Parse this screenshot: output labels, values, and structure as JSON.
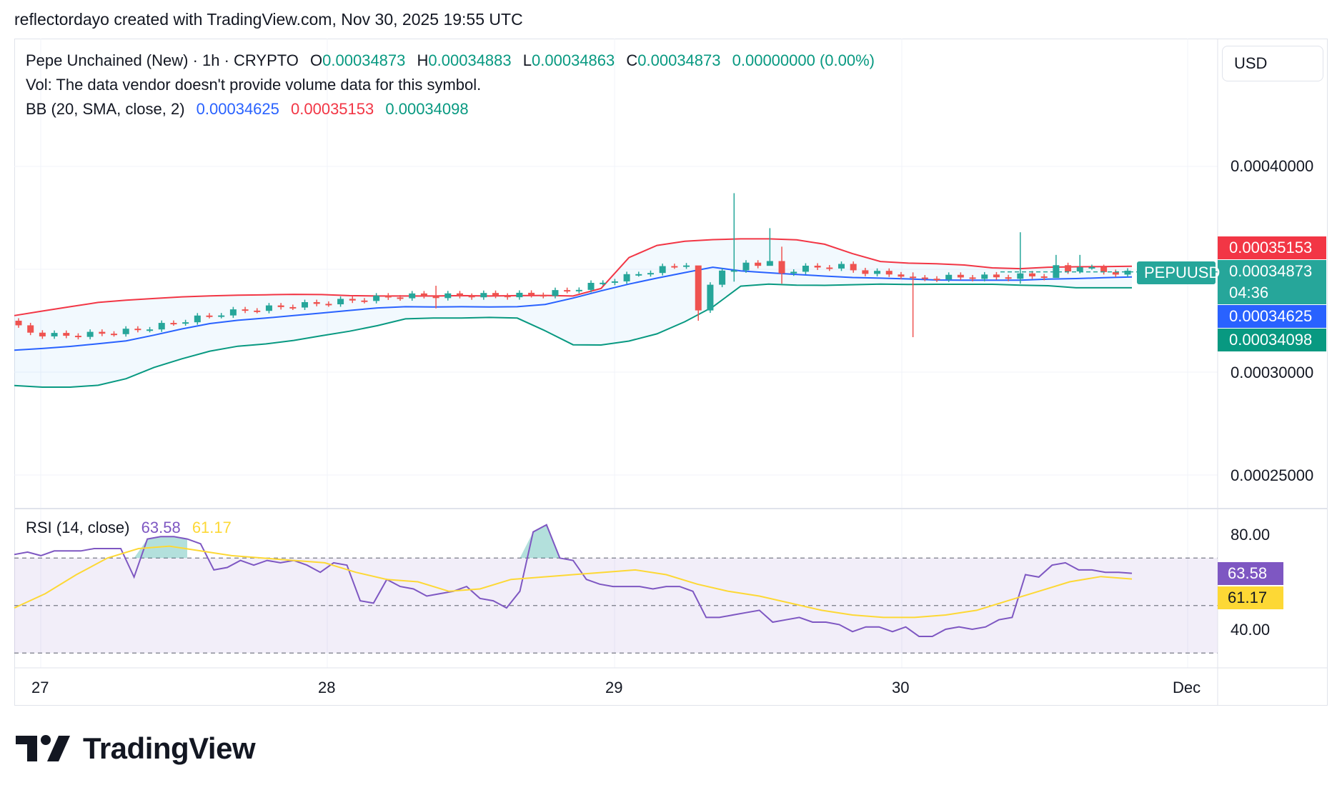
{
  "header": {
    "created_by": "reflectordayo created with TradingView.com, Nov 30, 2025 19:55 UTC"
  },
  "legend": {
    "symbol": "Pepe Unchained (New) · 1h · CRYPTO",
    "o_label": "O",
    "o": "0.00034873",
    "h_label": "H",
    "h": "0.00034883",
    "l_label": "L",
    "l": "0.00034863",
    "c_label": "C",
    "c": "0.00034873",
    "change": "0.00000000 (0.00%)",
    "vol": "Vol: The data vendor doesn't provide volume data for this symbol.",
    "bb_label": "BB (20, SMA, close, 2)",
    "bb_basis": "0.00034625",
    "bb_upper": "0.00035153",
    "bb_lower": "0.00034098"
  },
  "currency": "USD",
  "price_axis": {
    "ticks": [
      "0.00040000",
      "0.00030000",
      "0.00025000"
    ],
    "tags": {
      "upper": "0.00035153",
      "last": "0.00034873",
      "countdown": "04:36",
      "basis": "0.00034625",
      "lower": "0.00034098",
      "symbol": "PEPUUSD"
    }
  },
  "rsi": {
    "label": "RSI (14, close)",
    "value": "63.58",
    "ma": "61.17",
    "ticks": [
      "80.00",
      "40.00"
    ],
    "tag_value": "63.58",
    "tag_ma": "61.17"
  },
  "time_axis": {
    "ticks": [
      "27",
      "28",
      "29",
      "30",
      "Dec"
    ]
  },
  "colors": {
    "up": "#26a69a",
    "down": "#ef5350",
    "basis": "#2962ff",
    "upper": "#f23645",
    "lower": "#089981",
    "rsi": "#7e57c2",
    "rsi_ma": "#fdd835"
  },
  "brand": "TradingView",
  "chart_data": [
    {
      "type": "candlestick",
      "title": "Pepe Unchained (New) · 1h · CRYPTO",
      "x_ticks": [
        "27",
        "28",
        "29",
        "30",
        "Dec"
      ],
      "ylim": [
        0.00023,
        0.00042
      ],
      "series": [
        {
          "name": "BB (20, SMA, close, 2)",
          "upper_approx": [
            0.0003275,
            0.0003297,
            0.0003318,
            0.0003339,
            0.000335,
            0.0003358,
            0.0003366,
            0.0003371,
            0.0003374,
            0.0003376,
            0.0003378,
            0.0003377,
            0.0003372,
            0.000337,
            0.000337,
            0.000337,
            0.0003372,
            0.000337,
            0.0003372,
            0.0003373,
            0.000337,
            0.0003407,
            0.0003557,
            0.0003616,
            0.0003636,
            0.0003644,
            0.0003648,
            0.0003648,
            0.0003643,
            0.0003622,
            0.0003576,
            0.0003538,
            0.000353,
            0.0003527,
            0.0003521,
            0.0003507,
            0.0003503,
            0.000351,
            0.0003512,
            0.0003513,
            0.0003515
          ],
          "basis_approx": [
            0.0003107,
            0.0003115,
            0.0003125,
            0.0003138,
            0.0003152,
            0.000318,
            0.000321,
            0.0003236,
            0.0003252,
            0.0003263,
            0.0003275,
            0.0003287,
            0.00033,
            0.0003312,
            0.0003318,
            0.0003317,
            0.0003318,
            0.0003317,
            0.0003318,
            0.0003329,
            0.000336,
            0.0003395,
            0.0003428,
            0.0003457,
            0.0003484,
            0.000351,
            0.0003492,
            0.0003483,
            0.0003475,
            0.0003467,
            0.000346,
            0.0003457,
            0.0003453,
            0.0003448,
            0.0003447,
            0.0003447,
            0.0003447,
            0.0003452,
            0.0003455,
            0.0003459,
            0.0003463
          ],
          "lower_approx": [
            0.0002935,
            0.0002927,
            0.0002927,
            0.0002936,
            0.0002968,
            0.0003023,
            0.0003065,
            0.0003102,
            0.0003126,
            0.0003137,
            0.0003154,
            0.0003177,
            0.0003199,
            0.0003226,
            0.0003259,
            0.0003263,
            0.0003263,
            0.0003266,
            0.0003263,
            0.0003201,
            0.0003133,
            0.0003132,
            0.0003151,
            0.0003186,
            0.0003245,
            0.0003317,
            0.0003418,
            0.0003428,
            0.0003423,
            0.0003422,
            0.0003425,
            0.0003428,
            0.0003426,
            0.0003427,
            0.0003427,
            0.0003427,
            0.0003423,
            0.000342,
            0.000341,
            0.000341,
            0.000341
          ]
        }
      ],
      "last_price": 0.00034873
    },
    {
      "type": "line",
      "title": "RSI (14, close)",
      "ylim": [
        25,
        90
      ],
      "bands": [
        70,
        50,
        30
      ],
      "series": [
        {
          "name": "RSI",
          "values": [
            71.5,
            72.5,
            71,
            73,
            73,
            73,
            74,
            74,
            74,
            62,
            78,
            79,
            79,
            78,
            76,
            65,
            66,
            69,
            67,
            69,
            68,
            69,
            67,
            64,
            68,
            67,
            52,
            51,
            61,
            58,
            57,
            54,
            55,
            56,
            58,
            53,
            52,
            49,
            56,
            81,
            84,
            70,
            69,
            61,
            59,
            58,
            58,
            58,
            57,
            58,
            58,
            56,
            45,
            45,
            46,
            47,
            48,
            43,
            44,
            45,
            43,
            43,
            42,
            39,
            41,
            41,
            39,
            41,
            37,
            37,
            40,
            41,
            40,
            41,
            44,
            45,
            63,
            62,
            67,
            68,
            65,
            65,
            64,
            64,
            63.58
          ]
        },
        {
          "name": "RSI MA",
          "values": [
            49,
            55,
            63,
            70,
            74,
            75,
            73,
            71,
            70,
            69,
            68,
            64,
            61,
            60,
            56,
            57,
            61,
            62,
            63,
            64,
            65,
            63,
            59,
            56,
            54,
            51,
            48,
            46,
            45,
            45,
            46,
            48,
            52,
            56,
            60,
            62.2,
            61.17
          ]
        }
      ],
      "last_value": 63.58,
      "ma_value": 61.17
    }
  ]
}
